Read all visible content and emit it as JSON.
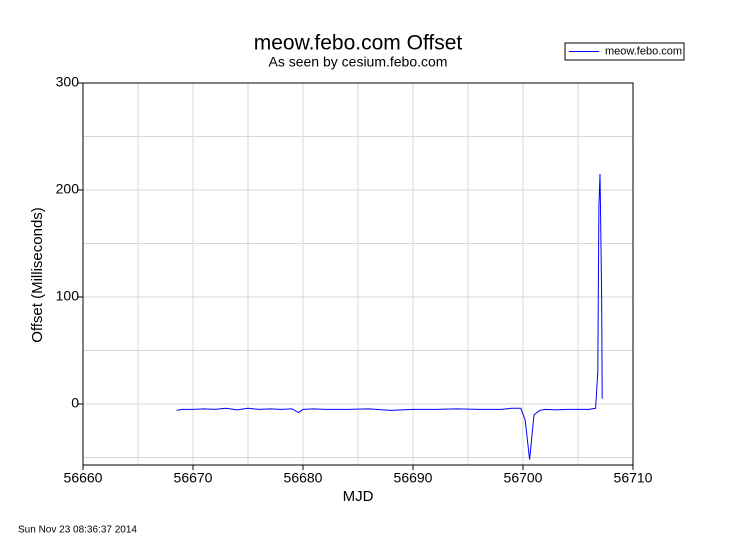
{
  "chart_data": {
    "type": "line",
    "title": "meow.febo.com Offset",
    "subtitle": "As seen by cesium.febo.com",
    "x_label": "MJD",
    "y_label": "Offset (Milliseconds)",
    "timestamp": "Sun Nov 23 08:36:37 2014",
    "xlim": [
      56660,
      56710
    ],
    "xticks": [
      56660,
      56670,
      56680,
      56690,
      56700,
      56710
    ],
    "x_minor_grid": [
      56665,
      56675,
      56685,
      56695,
      56705
    ],
    "ylim": [
      -57,
      300
    ],
    "yticks": [
      0,
      100,
      200,
      300
    ],
    "y_minor_grid": [
      -50,
      50,
      150,
      250
    ],
    "grid": true,
    "legend": "top-right",
    "series": [
      {
        "name": "meow.febo.com",
        "color": "#0000ff",
        "x": [
          56668.5,
          56669,
          56670,
          56671,
          56672,
          56673,
          56674,
          56675,
          56676,
          56677,
          56678,
          56679,
          56679.6,
          56680,
          56681,
          56682,
          56684,
          56686,
          56688,
          56690,
          56692,
          56694,
          56696,
          56698,
          56699,
          56699.8,
          56700.2,
          56700.6,
          56701,
          56701.5,
          56702,
          56703,
          56704,
          56705,
          56706,
          56706.6,
          56706.8,
          56706.9,
          56707,
          56707.05,
          56707.15,
          56707.2
        ],
        "values": [
          -6,
          -5,
          -5,
          -4.5,
          -5,
          -4,
          -5.5,
          -4,
          -5,
          -4.5,
          -5,
          -4.5,
          -8,
          -5,
          -4.5,
          -5,
          -5,
          -4.5,
          -6,
          -5,
          -5,
          -4.5,
          -5,
          -5,
          -4,
          -4,
          -15,
          -52,
          -10,
          -6,
          -5,
          -5.5,
          -5,
          -5,
          -5,
          -4,
          30,
          185,
          215,
          180,
          100,
          5
        ]
      }
    ]
  }
}
